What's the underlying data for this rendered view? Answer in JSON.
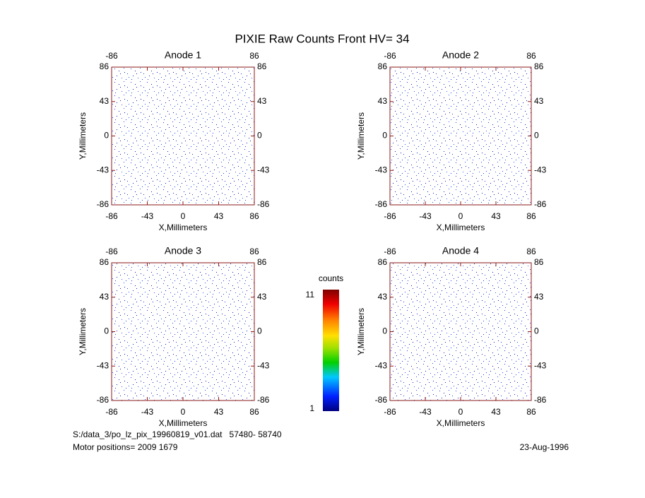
{
  "title": "PIXIE Raw Counts Front HV= 34",
  "chart_data": [
    {
      "type": "heatmap",
      "title": "Anode 1",
      "xlabel": "X,Millimeters",
      "ylabel": "Y,Millimeters",
      "xlim": [
        -86,
        86
      ],
      "ylim": [
        -86,
        86
      ],
      "xticks": [
        -86,
        -43,
        0,
        43,
        86
      ],
      "yticks": [
        -86,
        -43,
        0,
        43,
        86
      ]
    },
    {
      "type": "heatmap",
      "title": "Anode 2",
      "xlabel": "X,Millimeters",
      "ylabel": "Y,Millimeters",
      "xlim": [
        -86,
        86
      ],
      "ylim": [
        -86,
        86
      ],
      "xticks": [
        -86,
        -43,
        0,
        43,
        86
      ],
      "yticks": [
        -86,
        -43,
        0,
        43,
        86
      ]
    },
    {
      "type": "heatmap",
      "title": "Anode 3",
      "xlabel": "X,Millimeters",
      "ylabel": "Y,Millimeters",
      "xlim": [
        -86,
        86
      ],
      "ylim": [
        -86,
        86
      ],
      "xticks": [
        -86,
        -43,
        0,
        43,
        86
      ],
      "yticks": [
        -86,
        -43,
        0,
        43,
        86
      ]
    },
    {
      "type": "heatmap",
      "title": "Anode 4",
      "xlabel": "X,Millimeters",
      "ylabel": "Y,Millimeters",
      "xlim": [
        -86,
        86
      ],
      "ylim": [
        -86,
        86
      ],
      "xticks": [
        -86,
        -43,
        0,
        43,
        86
      ],
      "yticks": [
        -86,
        -43,
        0,
        43,
        86
      ]
    }
  ],
  "colorbar": {
    "title": "counts",
    "clim": [
      1,
      11
    ],
    "cticks": [
      1,
      11
    ]
  },
  "footer": {
    "file": "S:/data_3/po_lz_pix_19960819_v01.dat   57480- 58740",
    "motor": "Motor positions= 2009 1679",
    "date": "23-Aug-1996"
  }
}
